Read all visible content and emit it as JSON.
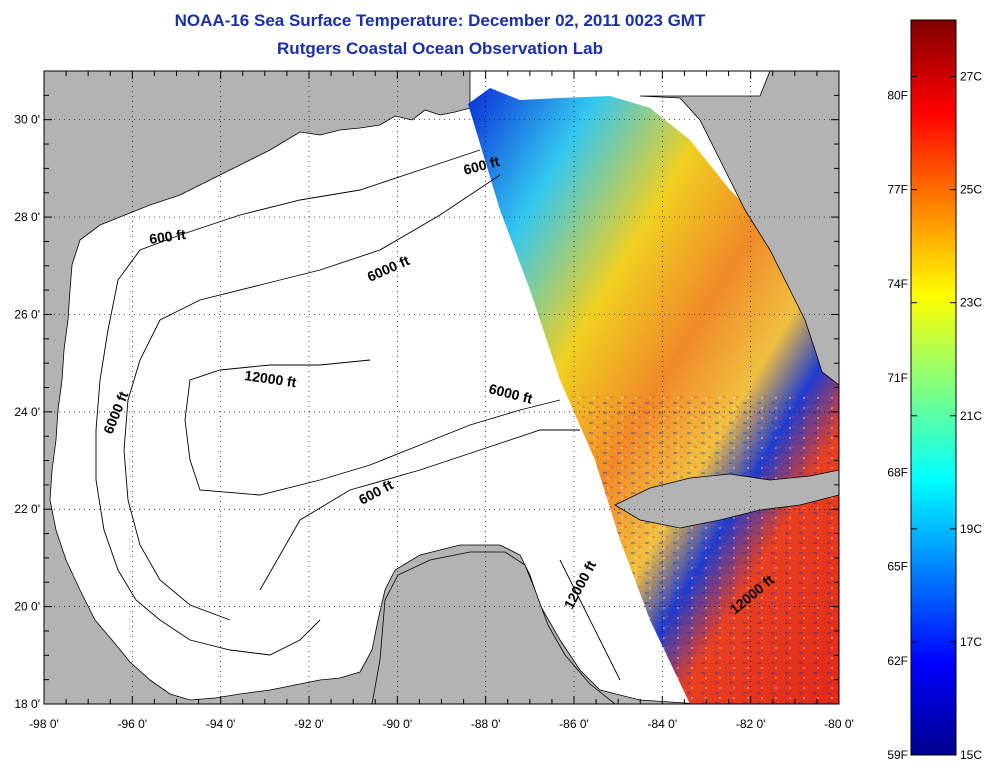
{
  "title": "NOAA-16 Sea Surface Temperature:  December 02, 2011 0023 GMT",
  "subtitle": "Rutgers Coastal Ocean Observation Lab",
  "map": {
    "region": "Gulf of Mexico",
    "lon_range": [
      -98,
      -80
    ],
    "lat_range": [
      18,
      31
    ],
    "x_tick_labels": [
      "-98 0'",
      "-96 0'",
      "-94 0'",
      "-92 0'",
      "-90 0'",
      "-88 0'",
      "-86 0'",
      "-84 0'",
      "-82 0'",
      "-80 0'"
    ],
    "y_tick_labels": [
      "30 0'",
      "28 0'",
      "26 0'",
      "24 0'",
      "22 0'",
      "20 0'",
      "18 0'"
    ],
    "grid": "dotted",
    "colors": {
      "land": "#b3b3b3",
      "no_data_water": "#ffffff",
      "contour": "#000000"
    },
    "contour_labels": [
      {
        "text": "600 ft"
      },
      {
        "text": "600 ft"
      },
      {
        "text": "600 ft"
      },
      {
        "text": "6000 ft"
      },
      {
        "text": "6000 ft"
      },
      {
        "text": "6000 ft"
      },
      {
        "text": "12000 ft"
      },
      {
        "text": "12000 ft"
      },
      {
        "text": "12000 ft"
      }
    ]
  },
  "colorbar": {
    "fahrenheit_labels": [
      "80F",
      "77F",
      "74F",
      "71F",
      "68F",
      "65F",
      "62F",
      "59F"
    ],
    "celsius_labels": [
      "27C",
      "25C",
      "23C",
      "21C",
      "19C",
      "17C",
      "15C"
    ],
    "range_c": [
      15,
      28
    ],
    "colormap": "jet",
    "stops": [
      "#00008f",
      "#0000ff",
      "#0080ff",
      "#00ffff",
      "#80ff80",
      "#ffff00",
      "#ff8000",
      "#ff0000",
      "#800000"
    ]
  }
}
